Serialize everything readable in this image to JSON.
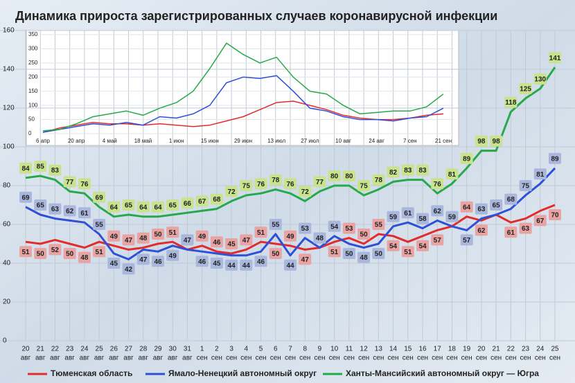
{
  "chart_data": [
    {
      "type": "line",
      "title": "Динамика прироста зарегистрированных случаев коронавирусной инфекции",
      "categories": [
        "20",
        "21",
        "22",
        "23",
        "24",
        "25",
        "26",
        "27",
        "28",
        "29",
        "30",
        "31",
        "1",
        "2",
        "3",
        "4",
        "5",
        "6",
        "7",
        "8",
        "9",
        "10",
        "11",
        "12",
        "13",
        "14",
        "15",
        "16",
        "17",
        "18",
        "19",
        "20",
        "21",
        "22",
        "23",
        "24",
        "25"
      ],
      "category_months": [
        "авг",
        "авг",
        "авг",
        "авг",
        "авг",
        "авг",
        "авг",
        "авг",
        "авг",
        "авг",
        "авг",
        "авг",
        "сен",
        "сен",
        "сен",
        "сен",
        "сен",
        "сен",
        "сен",
        "сен",
        "сен",
        "сен",
        "сен",
        "сен",
        "сен",
        "сен",
        "сен",
        "сен",
        "сен",
        "сен",
        "сен",
        "сен",
        "сен",
        "сен",
        "сен",
        "сен",
        "сен"
      ],
      "series": [
        {
          "name": "Тюменская область",
          "color": "#e32b2b",
          "label_color": "#e9a3a3",
          "values": [
            51,
            50,
            52,
            50,
            48,
            51,
            49,
            47,
            48,
            50,
            51,
            47,
            49,
            46,
            45,
            47,
            51,
            50,
            49,
            47,
            48,
            51,
            53,
            50,
            55,
            54,
            51,
            54,
            57,
            59,
            64,
            62,
            65,
            61,
            63,
            67,
            70
          ]
        },
        {
          "name": "Ямало-Ненецкий автономный округ",
          "color": "#2e4fd6",
          "label_color": "#a9b7dc",
          "values": [
            69,
            65,
            63,
            62,
            61,
            55,
            45,
            42,
            47,
            46,
            49,
            47,
            46,
            45,
            44,
            44,
            46,
            55,
            44,
            53,
            48,
            54,
            50,
            48,
            50,
            59,
            61,
            58,
            62,
            59,
            57,
            63,
            65,
            68,
            75,
            81,
            89
          ]
        },
        {
          "name": "Ханты-Мансийский автономный округ — Югра",
          "color": "#27a84a",
          "label_color": "#c9e28e",
          "values": [
            84,
            85,
            83,
            77,
            76,
            69,
            64,
            65,
            64,
            64,
            65,
            66,
            67,
            68,
            72,
            75,
            76,
            78,
            76,
            72,
            77,
            80,
            80,
            75,
            78,
            82,
            83,
            83,
            76,
            81,
            89,
            98,
            98,
            118,
            125,
            130,
            141
          ]
        }
      ],
      "ylim": [
        0,
        160
      ],
      "yticks": [
        0,
        20,
        40,
        60,
        80,
        100,
        120,
        140,
        160
      ],
      "grid": true
    },
    {
      "type": "line",
      "categories": [
        "6 апр",
        null,
        "20 апр",
        null,
        "4 май",
        null,
        "18 май",
        null,
        "1 июн",
        null,
        "15 июн",
        null,
        "29 июн",
        null,
        "13 июл",
        null,
        "27 июл",
        null,
        "10 авг",
        null,
        "24 авг",
        null,
        "7 сен",
        null,
        "21 сен"
      ],
      "series": [
        {
          "color": "#e32b2b",
          "values": [
            5,
            20,
            30,
            40,
            35,
            35,
            30,
            35,
            30,
            25,
            30,
            45,
            60,
            85,
            110,
            115,
            100,
            85,
            65,
            55,
            50,
            50,
            55,
            65,
            70
          ]
        },
        {
          "color": "#2e4fd6",
          "values": [
            5,
            15,
            25,
            35,
            30,
            40,
            30,
            60,
            55,
            70,
            100,
            180,
            200,
            195,
            205,
            150,
            90,
            80,
            60,
            50,
            50,
            45,
            55,
            60,
            90
          ]
        },
        {
          "color": "#27a84a",
          "values": [
            10,
            15,
            35,
            60,
            70,
            80,
            65,
            90,
            110,
            150,
            230,
            320,
            280,
            250,
            270,
            200,
            150,
            140,
            100,
            70,
            75,
            80,
            80,
            95,
            140
          ]
        }
      ],
      "ylim": [
        0,
        350
      ],
      "yticks": [
        0,
        50,
        100,
        150,
        200,
        250,
        300,
        350
      ],
      "grid": true
    }
  ]
}
